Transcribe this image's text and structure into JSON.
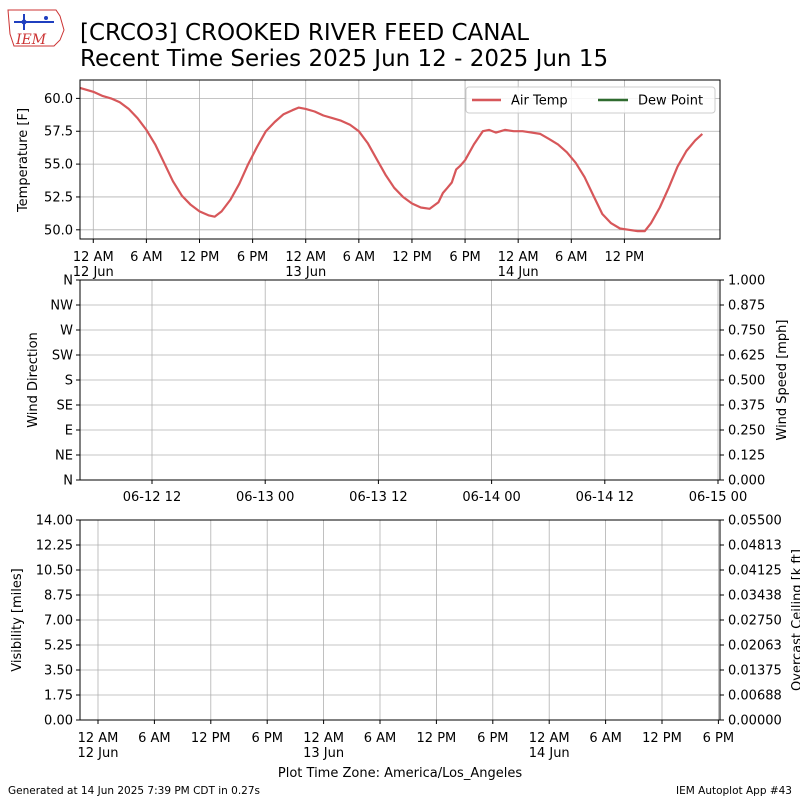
{
  "header": {
    "logo_text": "IEM",
    "title_line1": "[CRCO3] CROOKED RIVER FEED CANAL",
    "title_line2": "Recent Time Series 2025 Jun 12 - 2025 Jun 15"
  },
  "footer": {
    "generated": "Generated at 14 Jun 2025 7:39 PM CDT in 0.27s",
    "app": "IEM Autoplot App #43",
    "timezone_label": "Plot Time Zone: America/Los_Angeles"
  },
  "colors": {
    "air_temp": "#d7575a",
    "dew_point": "#2f6b2f",
    "grid": "#b0b0b0",
    "ceiling_label": "#008000"
  },
  "chart_data": [
    {
      "id": "temperature",
      "type": "line",
      "ylabel": "Temperature [F]",
      "ylim": [
        49.3,
        61.4
      ],
      "xlim_hours": [
        -1.5,
        70.8
      ],
      "yticks": [
        {
          "v": 50.0,
          "label": "50.0"
        },
        {
          "v": 52.5,
          "label": "52.5"
        },
        {
          "v": 55.0,
          "label": "55.0"
        },
        {
          "v": 57.5,
          "label": "57.5"
        },
        {
          "v": 60.0,
          "label": "60.0"
        }
      ],
      "xticks": [
        {
          "h": 0,
          "label": "12 AM",
          "sub": "12 Jun"
        },
        {
          "h": 6,
          "label": "6 AM",
          "sub": ""
        },
        {
          "h": 12,
          "label": "12 PM",
          "sub": ""
        },
        {
          "h": 18,
          "label": "6 PM",
          "sub": ""
        },
        {
          "h": 24,
          "label": "12 AM",
          "sub": "13 Jun"
        },
        {
          "h": 30,
          "label": "6 AM",
          "sub": ""
        },
        {
          "h": 36,
          "label": "12 PM",
          "sub": ""
        },
        {
          "h": 42,
          "label": "6 PM",
          "sub": ""
        },
        {
          "h": 48,
          "label": "12 AM",
          "sub": "14 Jun"
        },
        {
          "h": 54,
          "label": "6 AM",
          "sub": ""
        },
        {
          "h": 60,
          "label": "12 PM",
          "sub": ""
        }
      ],
      "legend_position": "upper-right",
      "grid": true,
      "series": [
        {
          "name": "Air Temp",
          "color": "#d7575a",
          "points": [
            [
              -1.5,
              60.8
            ],
            [
              0,
              60.5
            ],
            [
              1,
              60.2
            ],
            [
              2,
              60.0
            ],
            [
              3,
              59.7
            ],
            [
              4,
              59.2
            ],
            [
              5,
              58.5
            ],
            [
              6,
              57.6
            ],
            [
              7,
              56.5
            ],
            [
              8,
              55.1
            ],
            [
              9,
              53.7
            ],
            [
              10,
              52.6
            ],
            [
              11,
              51.9
            ],
            [
              12,
              51.4
            ],
            [
              13,
              51.1
            ],
            [
              13.7,
              51.0
            ],
            [
              14.5,
              51.4
            ],
            [
              15.5,
              52.3
            ],
            [
              16.5,
              53.5
            ],
            [
              17.5,
              55.0
            ],
            [
              18.5,
              56.3
            ],
            [
              19.5,
              57.5
            ],
            [
              20.5,
              58.2
            ],
            [
              21.5,
              58.8
            ],
            [
              22.5,
              59.1
            ],
            [
              23.2,
              59.3
            ],
            [
              24,
              59.2
            ],
            [
              25,
              59.0
            ],
            [
              26,
              58.7
            ],
            [
              27,
              58.5
            ],
            [
              28,
              58.3
            ],
            [
              29,
              58.0
            ],
            [
              30,
              57.5
            ],
            [
              31,
              56.6
            ],
            [
              32,
              55.4
            ],
            [
              33,
              54.2
            ],
            [
              34,
              53.2
            ],
            [
              35,
              52.5
            ],
            [
              36,
              52.0
            ],
            [
              37,
              51.7
            ],
            [
              38,
              51.6
            ],
            [
              39,
              52.1
            ],
            [
              39.5,
              52.8
            ],
            [
              40,
              53.2
            ],
            [
              40.5,
              53.6
            ],
            [
              41,
              54.6
            ],
            [
              41.5,
              54.9
            ],
            [
              42,
              55.3
            ],
            [
              43,
              56.5
            ],
            [
              44,
              57.5
            ],
            [
              44.7,
              57.6
            ],
            [
              45.5,
              57.4
            ],
            [
              46.5,
              57.6
            ],
            [
              47.5,
              57.5
            ],
            [
              48.5,
              57.5
            ],
            [
              49.5,
              57.4
            ],
            [
              50.5,
              57.3
            ],
            [
              51.5,
              56.9
            ],
            [
              52.5,
              56.5
            ],
            [
              53.5,
              55.9
            ],
            [
              54.5,
              55.1
            ],
            [
              55.5,
              54.0
            ],
            [
              56.5,
              52.6
            ],
            [
              57.5,
              51.2
            ],
            [
              58.5,
              50.5
            ],
            [
              59.5,
              50.1
            ],
            [
              60.5,
              50.0
            ],
            [
              61.5,
              49.9
            ],
            [
              62.3,
              49.9
            ],
            [
              63,
              50.5
            ],
            [
              64,
              51.7
            ],
            [
              65,
              53.2
            ],
            [
              66,
              54.8
            ],
            [
              67,
              56.0
            ],
            [
              68,
              56.8
            ],
            [
              68.8,
              57.3
            ]
          ]
        },
        {
          "name": "Dew Point",
          "color": "#2f6b2f",
          "points": []
        }
      ]
    },
    {
      "id": "wind",
      "type": "line",
      "ylabel": "Wind Direction",
      "ylabel_right": "Wind Speed [mph]",
      "grid": true,
      "yticks_left": [
        "N",
        "NE",
        "E",
        "SE",
        "S",
        "SW",
        "W",
        "NW",
        "N"
      ],
      "yticks_right": [
        "0.000",
        "0.125",
        "0.250",
        "0.375",
        "0.500",
        "0.625",
        "0.750",
        "0.875",
        "1.000"
      ],
      "xticks": [
        "06-12 12",
        "06-13 00",
        "06-13 12",
        "06-14 00",
        "06-14 12",
        "06-15 00"
      ],
      "series": []
    },
    {
      "id": "visibility",
      "type": "line",
      "ylabel": "Visibility [miles]",
      "ylabel_right": "Overcast Ceiling [k ft]",
      "grid": true,
      "yticks_left": [
        "0.00",
        "1.75",
        "3.50",
        "5.25",
        "7.00",
        "8.75",
        "10.50",
        "12.25",
        "14.00"
      ],
      "yticks_right": [
        "0.00000",
        "0.00688",
        "0.01375",
        "0.02063",
        "0.02750",
        "0.03438",
        "0.04125",
        "0.04813",
        "0.05500"
      ],
      "xticks": [
        {
          "label": "12 AM",
          "sub": "12 Jun"
        },
        {
          "label": "6 AM",
          "sub": ""
        },
        {
          "label": "12 PM",
          "sub": ""
        },
        {
          "label": "6 PM",
          "sub": ""
        },
        {
          "label": "12 AM",
          "sub": "13 Jun"
        },
        {
          "label": "6 AM",
          "sub": ""
        },
        {
          "label": "12 PM",
          "sub": ""
        },
        {
          "label": "6 PM",
          "sub": ""
        },
        {
          "label": "12 AM",
          "sub": "14 Jun"
        },
        {
          "label": "6 AM",
          "sub": ""
        },
        {
          "label": "12 PM",
          "sub": ""
        },
        {
          "label": "6 PM",
          "sub": ""
        }
      ],
      "series": []
    }
  ]
}
